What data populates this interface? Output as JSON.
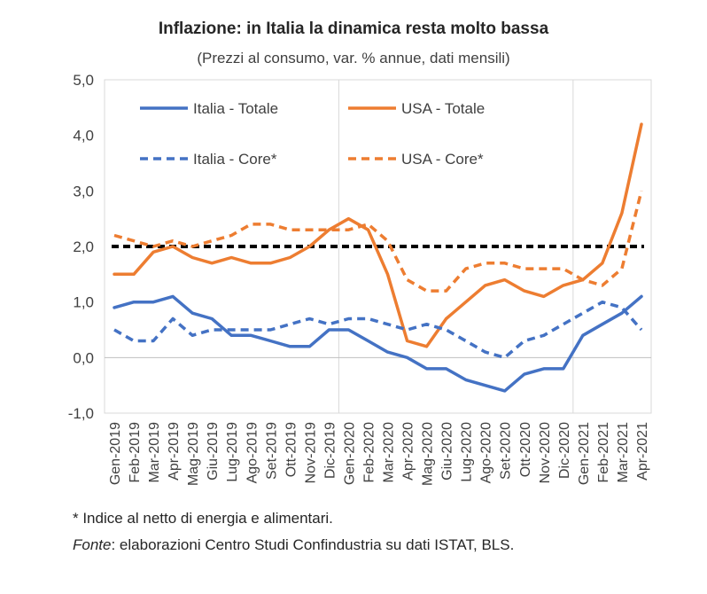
{
  "title": "Inflazione: in Italia la dinamica resta molto bassa",
  "subtitle": "(Prezzi al consumo, var. % annue, dati mensili)",
  "footnote": "* Indice al netto di energia e alimentari.",
  "source_label": "Fonte",
  "source_text": ": elaborazioni Centro Studi Confindustria su dati ISTAT, BLS.",
  "colors": {
    "italia": "#4472C4",
    "usa": "#ED7D31",
    "reference": "#000000",
    "grid": "#d9d9d9"
  },
  "chart_data": {
    "type": "line",
    "categories": [
      "Gen-2019",
      "Feb-2019",
      "Mar-2019",
      "Apr-2019",
      "Mag-2019",
      "Giu-2019",
      "Lug-2019",
      "Ago-2019",
      "Set-2019",
      "Ott-2019",
      "Nov-2019",
      "Dic-2019",
      "Gen-2020",
      "Feb-2020",
      "Mar-2020",
      "Apr-2020",
      "Mag-2020",
      "Giu-2020",
      "Lug-2020",
      "Ago-2020",
      "Set-2020",
      "Ott-2020",
      "Nov-2020",
      "Dic-2020",
      "Gen-2021",
      "Feb-2021",
      "Mar-2021",
      "Apr-2021"
    ],
    "y_tick_labels": [
      "-1,0",
      "0,0",
      "1,0",
      "2,0",
      "3,0",
      "4,0",
      "5,0"
    ],
    "ylim": [
      -1,
      5
    ],
    "reference_value": 2.0,
    "legend_position": "top, inside plot, two columns",
    "series": [
      {
        "name": "Italia - Totale",
        "style": "solid",
        "color": "#4472C4",
        "values": [
          0.9,
          1.0,
          1.0,
          1.1,
          0.8,
          0.7,
          0.4,
          0.4,
          0.3,
          0.2,
          0.2,
          0.5,
          0.5,
          0.3,
          0.1,
          0.0,
          -0.2,
          -0.2,
          -0.4,
          -0.5,
          -0.6,
          -0.3,
          -0.2,
          -0.2,
          0.4,
          0.6,
          0.8,
          1.1
        ]
      },
      {
        "name": "USA - Totale",
        "style": "solid",
        "color": "#ED7D31",
        "values": [
          1.5,
          1.5,
          1.9,
          2.0,
          1.8,
          1.7,
          1.8,
          1.7,
          1.7,
          1.8,
          2.0,
          2.3,
          2.5,
          2.3,
          1.5,
          0.3,
          0.2,
          0.7,
          1.0,
          1.3,
          1.4,
          1.2,
          1.1,
          1.3,
          1.4,
          1.7,
          2.6,
          4.2
        ]
      },
      {
        "name": "Italia - Core*",
        "style": "dashed",
        "color": "#4472C4",
        "values": [
          0.5,
          0.3,
          0.3,
          0.7,
          0.4,
          0.5,
          0.5,
          0.5,
          0.5,
          0.6,
          0.7,
          0.6,
          0.7,
          0.7,
          0.6,
          0.5,
          0.6,
          0.5,
          0.3,
          0.1,
          0.0,
          0.3,
          0.4,
          0.6,
          0.8,
          1.0,
          0.9,
          0.5
        ]
      },
      {
        "name": "USA - Core*",
        "style": "dashed",
        "color": "#ED7D31",
        "values": [
          2.2,
          2.1,
          2.0,
          2.1,
          2.0,
          2.1,
          2.2,
          2.4,
          2.4,
          2.3,
          2.3,
          2.3,
          2.3,
          2.4,
          2.1,
          1.4,
          1.2,
          1.2,
          1.6,
          1.7,
          1.7,
          1.6,
          1.6,
          1.6,
          1.4,
          1.3,
          1.6,
          3.0
        ]
      }
    ]
  }
}
